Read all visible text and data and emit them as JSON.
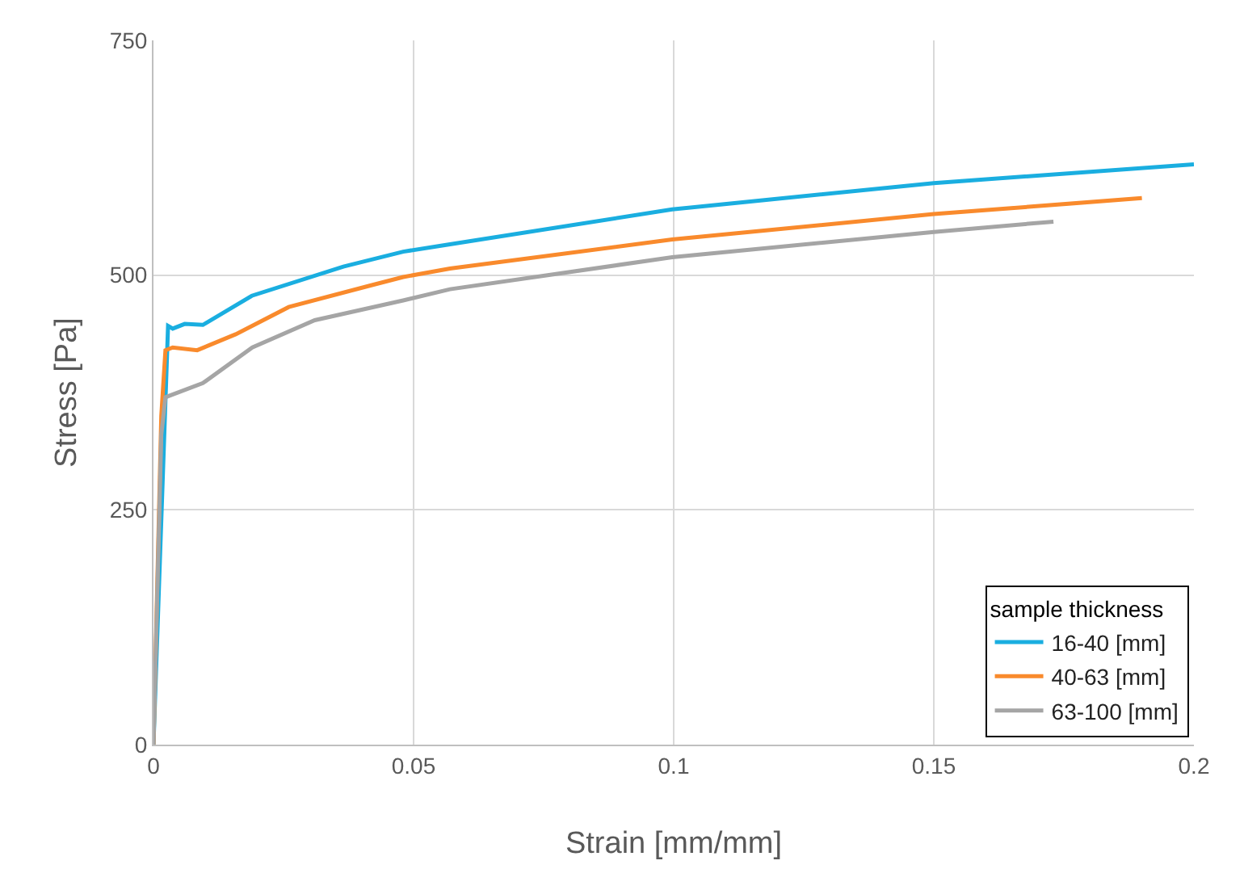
{
  "chart_data": {
    "type": "line",
    "xlabel": "Strain [mm/mm]",
    "ylabel": "Stress [Pa]",
    "legend_title": "sample thickness",
    "xlim": [
      0,
      0.2
    ],
    "xticks": [
      0,
      0.05,
      0.1,
      0.15,
      0.2
    ],
    "ylim": [
      0,
      750
    ],
    "yticks": [
      0,
      250,
      500,
      750
    ],
    "grid": true,
    "legend": "bottom right",
    "marker": "none",
    "line_style": "solid",
    "series": [
      {
        "name": "16-40 [mm]",
        "color": "#1aaee0",
        "x": [
          0,
          0.0028,
          0.0037,
          0.006,
          0.0095,
          0.0189,
          0.0365,
          0.048,
          0.056,
          0.0997,
          0.15,
          0.2
        ],
        "values": [
          0,
          446,
          443,
          448,
          447,
          478,
          509,
          525,
          532,
          570,
          598,
          618
        ]
      },
      {
        "name": "40-63 [mm]",
        "color": "#f98a2c",
        "x": [
          0,
          0.0015,
          0.0023,
          0.0037,
          0.0084,
          0.0158,
          0.026,
          0.0417,
          0.048,
          0.057,
          0.0997,
          0.15,
          0.19
        ],
        "values": [
          0,
          350,
          420,
          423,
          420,
          437,
          466,
          489,
          498,
          507,
          538,
          565,
          582
        ]
      },
      {
        "name": "63-100 [mm]",
        "color": "#a5a5a5",
        "x": [
          0,
          0.0015,
          0.0023,
          0.0095,
          0.019,
          0.031,
          0.048,
          0.057,
          0.0997,
          0.15,
          0.173
        ],
        "values": [
          0,
          330,
          370,
          385,
          423,
          452,
          473,
          485,
          519,
          546,
          557
        ]
      }
    ]
  }
}
